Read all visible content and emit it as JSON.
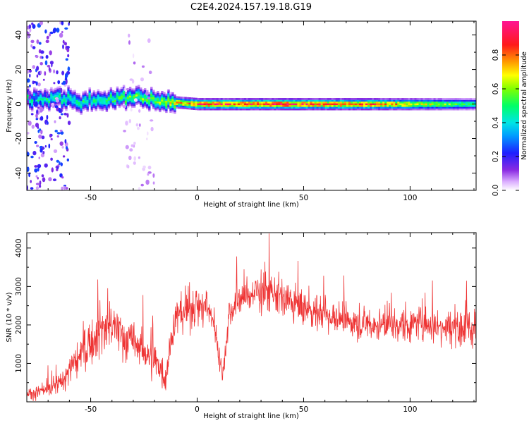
{
  "title": "C2E4.2024.157.19.18.G19",
  "colors": {
    "snr_line": "#ee3333",
    "spectrogram_max": "#ff1a1a",
    "axis": "#000000"
  },
  "chart_data": [
    {
      "type": "heatmap",
      "xlabel": "Height of straight line (km)",
      "ylabel": "Frequency (Hz)",
      "xlim": [
        -80,
        131
      ],
      "ylim": [
        -50,
        48
      ],
      "xticks": [
        -50,
        0,
        50,
        100
      ],
      "yticks": [
        -40,
        -20,
        0,
        20,
        40
      ],
      "colormap": "rainbow (white = 0, magenta = 1)",
      "colorbar": {
        "label": "Normalized spectral amplitude",
        "range": [
          0,
          1
        ],
        "ticks": [
          "0.0",
          "0.2",
          "0.4",
          "0.6",
          "0.8"
        ]
      },
      "ridge": {
        "description": "narrow-band signal near 0 Hz",
        "x": [
          -75,
          -60,
          -50,
          -40,
          -30,
          -20,
          -10,
          0,
          20,
          40,
          60,
          80,
          100,
          120,
          131
        ],
        "freq_hz": [
          3,
          3,
          1,
          4,
          4,
          2,
          1,
          0,
          0,
          0,
          0,
          0,
          0,
          0,
          0
        ],
        "peak_amplitude": [
          0.5,
          0.5,
          0.5,
          0.55,
          0.6,
          0.6,
          0.75,
          0.9,
          0.95,
          0.95,
          0.9,
          0.9,
          0.75,
          0.6,
          0.5
        ]
      },
      "noise_regions": [
        {
          "x_range": [
            -80,
            -60
          ],
          "freq_range": [
            -50,
            48
          ],
          "amplitude": 0.15
        },
        {
          "x_range": [
            -35,
            -20
          ],
          "freq_range": [
            -50,
            40
          ],
          "amplitude": 0.05
        }
      ]
    },
    {
      "type": "line",
      "xlabel": "Height of straight line (km)",
      "ylabel": "SNR (10 * v/v)",
      "xlim": [
        -80,
        131
      ],
      "ylim": [
        0,
        4400
      ],
      "xticks": [
        -50,
        0,
        50,
        100
      ],
      "yticks": [
        1000,
        2000,
        3000,
        4000
      ],
      "series": [
        {
          "color": "#ee3333",
          "x": [
            -80,
            -70,
            -65,
            -60,
            -55,
            -50,
            -45,
            -40,
            -35,
            -30,
            -25,
            -20,
            -17,
            -15,
            -12,
            -10,
            -5,
            0,
            5,
            8,
            10,
            12,
            15,
            20,
            25,
            30,
            35,
            40,
            45,
            50,
            55,
            60,
            65,
            70,
            75,
            80,
            85,
            90,
            95,
            100,
            105,
            110,
            115,
            120,
            125,
            131
          ],
          "y": [
            200,
            300,
            450,
            800,
            1200,
            1600,
            1900,
            2000,
            1700,
            1550,
            1300,
            1100,
            900,
            600,
            1700,
            2200,
            2400,
            2500,
            2400,
            2100,
            1300,
            700,
            2300,
            2700,
            2800,
            2900,
            2800,
            2700,
            2550,
            2400,
            2350,
            2300,
            2200,
            2100,
            2050,
            2000,
            2000,
            2000,
            2000,
            2000,
            2050,
            2000,
            2000,
            2000,
            1950,
            1900
          ],
          "noise_amplitude": [
            200,
            300,
            400,
            500,
            700,
            800,
            850,
            850,
            750,
            700,
            650,
            600,
            550,
            500,
            600,
            700,
            700,
            700,
            650,
            500,
            450,
            350,
            550,
            650,
            700,
            700,
            700,
            650,
            650,
            600,
            600,
            600,
            550,
            550,
            550,
            550,
            550,
            550,
            550,
            550,
            600,
            600,
            650,
            700,
            800,
            900
          ]
        }
      ]
    }
  ]
}
